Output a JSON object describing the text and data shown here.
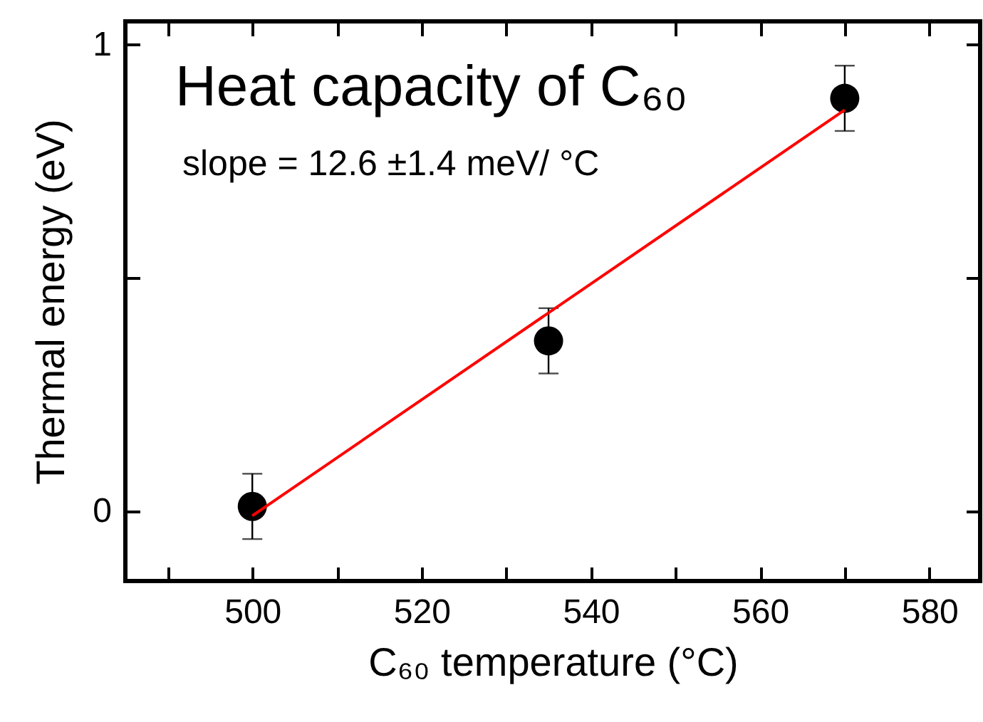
{
  "chart_data": {
    "type": "scatter",
    "xlabel": "C₆₀ temperature (°C)",
    "ylabel": "Thermal energy (eV)",
    "xlim": [
      485,
      586
    ],
    "ylim": [
      -0.15,
      1.05
    ],
    "xticks": [
      {
        "value": 490,
        "label": null
      },
      500,
      {
        "value": 510,
        "label": null
      },
      520,
      {
        "value": 530,
        "label": null
      },
      540,
      {
        "value": 550,
        "label": null
      },
      560,
      {
        "value": 570,
        "label": null
      },
      580
    ],
    "yticks": [
      0,
      {
        "value": 0.5,
        "label": null
      },
      1
    ],
    "grid": false,
    "marker": "circle",
    "annotations": [
      "Heat capacity of C₆₀",
      "slope = 12.6 ±1.4 meV/ °C"
    ],
    "series": [
      {
        "color": "#000000",
        "x": [
          500,
          535,
          570
        ],
        "values": [
          0.01,
          0.365,
          0.885
        ],
        "errors": [
          0.07,
          0.07,
          0.07
        ]
      },
      {
        "type": "line",
        "color": "#ff0000",
        "x": [
          500,
          570
        ],
        "values": [
          -0.01,
          0.86
        ],
        "line_style": "solid",
        "marker": "none"
      }
    ]
  }
}
